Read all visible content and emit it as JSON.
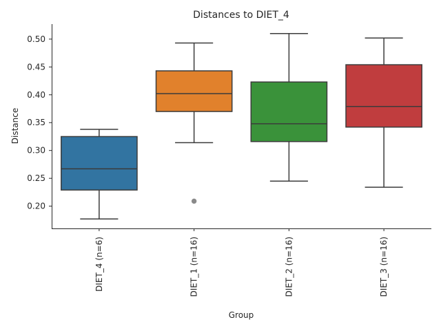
{
  "chart_data": {
    "type": "box",
    "title": "Distances to DIET_4",
    "xlabel": "Group",
    "ylabel": "Distance",
    "ylim": [
      0.16,
      0.527
    ],
    "yticks": [
      0.2,
      0.25,
      0.3,
      0.35,
      0.4,
      0.45,
      0.5
    ],
    "ytick_labels": [
      "0.20",
      "0.25",
      "0.30",
      "0.35",
      "0.40",
      "0.45",
      "0.50"
    ],
    "categories": [
      "DIET_4 (n=6)",
      "DIET_1 (n=16)",
      "DIET_2 (n=16)",
      "DIET_3 (n=16)"
    ],
    "boxes": [
      {
        "name": "DIET_4 (n=6)",
        "whislo": 0.177,
        "q1": 0.229,
        "med": 0.267,
        "q3": 0.325,
        "whishi": 0.338,
        "fliers": [],
        "color": "#3274a1"
      },
      {
        "name": "DIET_1 (n=16)",
        "whislo": 0.314,
        "q1": 0.37,
        "med": 0.402,
        "q3": 0.443,
        "whishi": 0.493,
        "fliers": [
          0.209
        ],
        "color": "#e1812c"
      },
      {
        "name": "DIET_2 (n=16)",
        "whislo": 0.245,
        "q1": 0.316,
        "med": 0.348,
        "q3": 0.423,
        "whishi": 0.51,
        "fliers": [],
        "color": "#3a923a"
      },
      {
        "name": "DIET_3 (n=16)",
        "whislo": 0.234,
        "q1": 0.342,
        "med": 0.379,
        "q3": 0.454,
        "whishi": 0.502,
        "fliers": [],
        "color": "#c03d3e"
      }
    ],
    "grid": false,
    "legend": "none"
  }
}
